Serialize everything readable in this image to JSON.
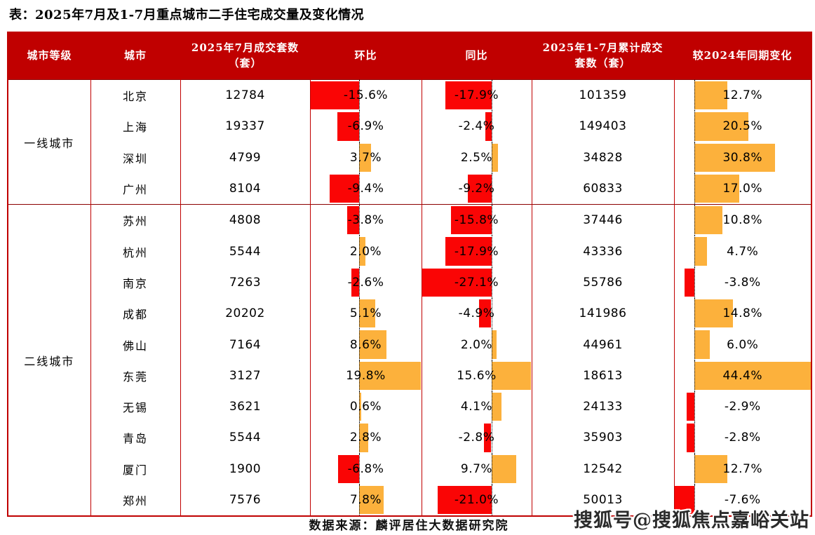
{
  "title": "表：2025年7月及1-7月重点城市二手住宅成交量及变化情况",
  "footer": {
    "source": "数据来源：麟评居住大数据研究院",
    "watermark": "搜狐号@搜狐焦点嘉峪关站"
  },
  "colors": {
    "header_bg": "#C00000",
    "table_border": "#C00000",
    "bar_positive": "#FCB13C",
    "bar_negative": "#FA0505",
    "baseline": "#000000"
  },
  "chart_data": {
    "type": "table",
    "title": "表：2025年7月及1-7月重点城市二手住宅成交量及变化情况",
    "columns": [
      "城市等级",
      "城市",
      "2025年7月成交套数（套）",
      "环比",
      "同比",
      "2025年1-7月累计成交套数（套）",
      "较2024年同期变化"
    ],
    "bar_columns": [
      "mom_pct",
      "yoy_pct",
      "vs_2024_pct"
    ],
    "bar_style": "in-cell data bars, red negative left of dotted baseline, amber positive right of baseline, scaled to column min/max",
    "groups": [
      {
        "tier": "一线城市",
        "rows": [
          {
            "city": "北京",
            "jul_2025": 12784,
            "mom_pct": -15.6,
            "yoy_pct": -17.9,
            "cum_jan_jul": 101359,
            "vs_2024_pct": 12.7
          },
          {
            "city": "上海",
            "jul_2025": 19337,
            "mom_pct": -6.9,
            "yoy_pct": -2.4,
            "cum_jan_jul": 149403,
            "vs_2024_pct": 20.5
          },
          {
            "city": "深圳",
            "jul_2025": 4799,
            "mom_pct": 3.7,
            "yoy_pct": 2.5,
            "cum_jan_jul": 34828,
            "vs_2024_pct": 30.8
          },
          {
            "city": "广州",
            "jul_2025": 8104,
            "mom_pct": -9.4,
            "yoy_pct": -9.2,
            "cum_jan_jul": 60833,
            "vs_2024_pct": 17.0
          }
        ]
      },
      {
        "tier": "二线城市",
        "rows": [
          {
            "city": "苏州",
            "jul_2025": 4808,
            "mom_pct": -3.8,
            "yoy_pct": -15.8,
            "cum_jan_jul": 37446,
            "vs_2024_pct": 10.8
          },
          {
            "city": "杭州",
            "jul_2025": 5544,
            "mom_pct": 2.0,
            "yoy_pct": -17.9,
            "cum_jan_jul": 43336,
            "vs_2024_pct": 4.7
          },
          {
            "city": "南京",
            "jul_2025": 7263,
            "mom_pct": -2.6,
            "yoy_pct": -27.1,
            "cum_jan_jul": 55786,
            "vs_2024_pct": -3.8
          },
          {
            "city": "成都",
            "jul_2025": 20202,
            "mom_pct": 5.1,
            "yoy_pct": -4.9,
            "cum_jan_jul": 141986,
            "vs_2024_pct": 14.8
          },
          {
            "city": "佛山",
            "jul_2025": 7164,
            "mom_pct": 8.6,
            "yoy_pct": 2.0,
            "cum_jan_jul": 44961,
            "vs_2024_pct": 6.0
          },
          {
            "city": "东莞",
            "jul_2025": 3127,
            "mom_pct": 19.8,
            "yoy_pct": 15.6,
            "cum_jan_jul": 18613,
            "vs_2024_pct": 44.4
          },
          {
            "city": "无锡",
            "jul_2025": 3621,
            "mom_pct": 0.6,
            "yoy_pct": 4.1,
            "cum_jan_jul": 24133,
            "vs_2024_pct": -2.9
          },
          {
            "city": "青岛",
            "jul_2025": 5544,
            "mom_pct": 2.8,
            "yoy_pct": -2.8,
            "cum_jan_jul": 35903,
            "vs_2024_pct": -2.8
          },
          {
            "city": "厦门",
            "jul_2025": 1900,
            "mom_pct": -6.8,
            "yoy_pct": 9.7,
            "cum_jan_jul": 12542,
            "vs_2024_pct": 12.7
          },
          {
            "city": "郑州",
            "jul_2025": 7576,
            "mom_pct": 7.8,
            "yoy_pct": -21.0,
            "cum_jan_jul": 50013,
            "vs_2024_pct": -7.6
          }
        ]
      }
    ]
  }
}
